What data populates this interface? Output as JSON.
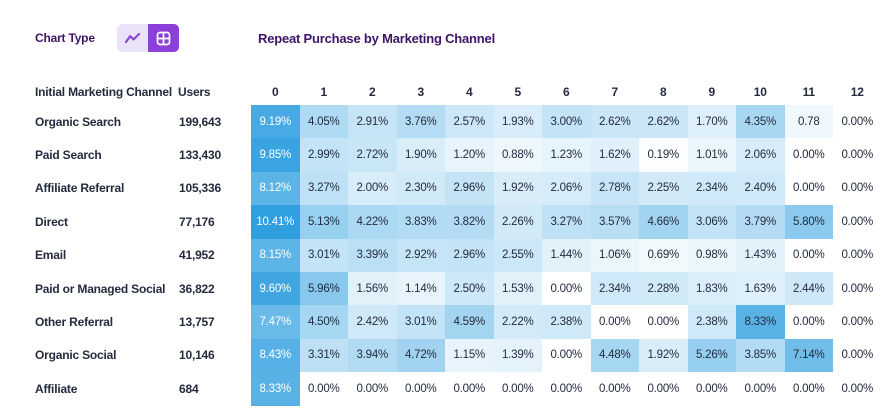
{
  "controls": {
    "chart_type_label": "Chart Type",
    "options": [
      {
        "name": "line",
        "icon": "line-chart-icon",
        "active": false
      },
      {
        "name": "table",
        "icon": "grid-icon",
        "active": true
      }
    ]
  },
  "title": "Repeat Purchase by Marketing Channel",
  "chart_data": {
    "type": "heatmap",
    "title": "Repeat Purchase by Marketing Channel",
    "row_header_label": "Initial Marketing Channel",
    "users_label": "Users",
    "col_headers": [
      "0",
      "1",
      "2",
      "3",
      "4",
      "5",
      "6",
      "7",
      "8",
      "9",
      "10",
      "11",
      "12"
    ],
    "unit": "percent",
    "max_value": 10.41,
    "colors": {
      "min": "#ffffff",
      "max": "#2f9fe0"
    },
    "rows": [
      {
        "channel": "Organic Search",
        "users": "199,643",
        "values": [
          "9.19%",
          "4.05%",
          "2.91%",
          "3.76%",
          "2.57%",
          "1.93%",
          "3.00%",
          "2.62%",
          "2.62%",
          "1.70%",
          "4.35%",
          "0.78",
          "0.00%"
        ]
      },
      {
        "channel": "Paid Search",
        "users": "133,430",
        "values": [
          "9.85%",
          "2.99%",
          "2.72%",
          "1.90%",
          "1.20%",
          "0.88%",
          "1.23%",
          "1.62%",
          "0.19%",
          "1.01%",
          "2.06%",
          "0.00%",
          "0.00%"
        ]
      },
      {
        "channel": "Affiliate Referral",
        "users": "105,336",
        "values": [
          "8.12%",
          "3.27%",
          "2.00%",
          "2.30%",
          "2.96%",
          "1.92%",
          "2.06%",
          "2.78%",
          "2.25%",
          "2.34%",
          "2.40%",
          "0.00%",
          "0.00%"
        ]
      },
      {
        "channel": "Direct",
        "users": "77,176",
        "values": [
          "10.41%",
          "5.13%",
          "4.22%",
          "3.83%",
          "3.82%",
          "2.26%",
          "3.27%",
          "3.57%",
          "4.66%",
          "3.06%",
          "3.79%",
          "5.80%",
          "0.00%"
        ]
      },
      {
        "channel": "Email",
        "users": "41,952",
        "values": [
          "8.15%",
          "3.01%",
          "3.39%",
          "2.92%",
          "2.96%",
          "2.55%",
          "1.44%",
          "1.06%",
          "0.69%",
          "0.98%",
          "1.43%",
          "0.00%",
          "0.00%"
        ]
      },
      {
        "channel": "Paid or Managed Social",
        "users": "36,822",
        "values": [
          "9.60%",
          "5.96%",
          "1.56%",
          "1.14%",
          "2.50%",
          "1.53%",
          "0.00%",
          "2.34%",
          "2.28%",
          "1.83%",
          "1.63%",
          "2.44%",
          "0.00%"
        ]
      },
      {
        "channel": "Other Referral",
        "users": "13,757",
        "values": [
          "7.47%",
          "4.50%",
          "2.42%",
          "3.01%",
          "4.59%",
          "2.22%",
          "2.38%",
          "0.00%",
          "0.00%",
          "2.38%",
          "8.33%",
          "0.00%",
          "0.00%"
        ]
      },
      {
        "channel": "Organic Social",
        "users": "10,146",
        "values": [
          "8.43%",
          "3.31%",
          "3.94%",
          "4.72%",
          "1.15%",
          "1.39%",
          "0.00%",
          "4.48%",
          "1.92%",
          "5.26%",
          "3.85%",
          "7.14%",
          "0.00%"
        ]
      },
      {
        "channel": "Affiliate",
        "users": "684",
        "values": [
          "8.33%",
          "0.00%",
          "0.00%",
          "0.00%",
          "0.00%",
          "0.00%",
          "0.00%",
          "0.00%",
          "0.00%",
          "0.00%",
          "0.00%",
          "0.00%",
          "0.00%"
        ]
      }
    ]
  }
}
